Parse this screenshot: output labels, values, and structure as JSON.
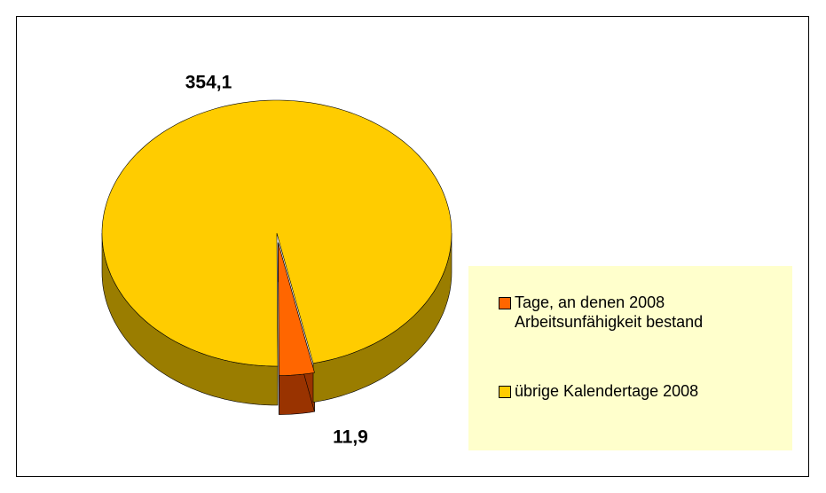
{
  "chart_data": {
    "type": "pie",
    "categories": [
      "Tage, an denen 2008 Arbeitsunfähigkeit bestand",
      "übrige Kalendertage 2008"
    ],
    "values": [
      11.9,
      354.1
    ],
    "value_labels": [
      "11,9",
      "354,1"
    ],
    "colors": [
      "#ff6600",
      "#ffcc00"
    ],
    "side_colors": [
      "#993300",
      "#9a7d00"
    ],
    "legend": "right"
  }
}
